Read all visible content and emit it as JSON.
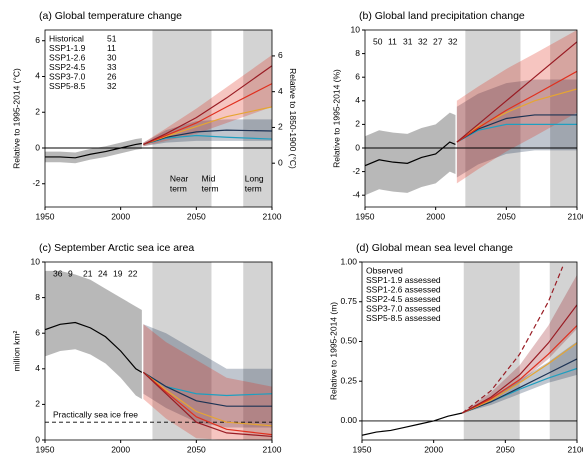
{
  "chart_data": [
    {
      "type": "line",
      "title": "(a) Global temperature change",
      "ylabel": "Relative to 1995-2014 (°C)",
      "y2label": "Relative to 1850-1900 (°C)",
      "xlim": [
        1950,
        2100
      ],
      "xticks": [
        1950,
        2000,
        2050,
        2100
      ],
      "ylim": [
        -3.3,
        6.6
      ],
      "yticks": [
        -2,
        0,
        2,
        4,
        6
      ],
      "y2lim": [
        -2.45,
        7.45
      ],
      "y2ticks": [
        0,
        2,
        4,
        6
      ],
      "shading": [
        [
          2021,
          2060
        ],
        [
          2081,
          2100
        ]
      ],
      "legend": "upper left",
      "annotations": [
        [
          "Near",
          "term"
        ],
        [
          "Mid",
          "term"
        ],
        [
          "Long",
          "term"
        ]
      ],
      "series": [
        {
          "name": "Historical",
          "count": 51,
          "color": "#000000",
          "x": [
            1950,
            1960,
            1970,
            1980,
            1990,
            2000,
            2010,
            2014
          ],
          "values": [
            -0.5,
            -0.5,
            -0.55,
            -0.35,
            -0.2,
            0,
            0.2,
            0.25
          ],
          "lower": [
            -0.8,
            -0.8,
            -0.85,
            -0.65,
            -0.5,
            -0.3,
            -0.1,
            -0.05
          ],
          "upper": [
            -0.2,
            -0.2,
            -0.25,
            -0.05,
            0.1,
            0.3,
            0.5,
            0.55
          ]
        },
        {
          "name": "SSP1-1.9",
          "count": 11,
          "color": "#1e9fc0",
          "x": [
            2015,
            2030,
            2050,
            2070,
            2100
          ],
          "values": [
            0.2,
            0.55,
            0.7,
            0.6,
            0.5
          ]
        },
        {
          "name": "SSP1-2.6",
          "count": 30,
          "color": "#1d3354",
          "x": [
            2015,
            2030,
            2050,
            2070,
            2100
          ],
          "values": [
            0.2,
            0.6,
            0.9,
            1.0,
            0.95
          ],
          "lower": [
            0.1,
            0.3,
            0.4,
            0.4,
            0.4
          ],
          "upper": [
            0.3,
            1.0,
            1.5,
            1.6,
            1.6
          ]
        },
        {
          "name": "SSP2-4.5",
          "count": 33,
          "color": "#e6a532",
          "x": [
            2015,
            2030,
            2050,
            2070,
            2100
          ],
          "values": [
            0.2,
            0.65,
            1.2,
            1.75,
            2.3
          ]
        },
        {
          "name": "SSP3-7.0",
          "count": 26,
          "color": "#e0301e",
          "x": [
            2015,
            2030,
            2050,
            2070,
            2100
          ],
          "values": [
            0.2,
            0.7,
            1.4,
            2.3,
            3.6
          ],
          "lower": [
            0.1,
            0.4,
            0.8,
            1.4,
            2.3
          ],
          "upper": [
            0.3,
            1.1,
            2.2,
            3.4,
            5.2
          ]
        },
        {
          "name": "SSP5-8.5",
          "count": 32,
          "color": "#991c24",
          "x": [
            2015,
            2030,
            2050,
            2070,
            2100
          ],
          "values": [
            0.2,
            0.8,
            1.7,
            2.8,
            4.6
          ]
        }
      ]
    },
    {
      "type": "line",
      "title": "(b) Global land precipitation change",
      "ylabel": "Relative to 1995-2014 (%)",
      "xlim": [
        1950,
        2100
      ],
      "xticks": [
        1950,
        2000,
        2050,
        2100
      ],
      "ylim": [
        -5,
        10
      ],
      "yticks": [
        -4,
        -2,
        0,
        2,
        4,
        6,
        8,
        10
      ],
      "shading": [
        [
          2021,
          2060
        ],
        [
          2081,
          2100
        ]
      ],
      "legend": "upper left",
      "series": [
        {
          "count": 50,
          "color": "#000000",
          "x": [
            1950,
            1960,
            1970,
            1980,
            1990,
            2000,
            2010,
            2014
          ],
          "values": [
            -1.5,
            -1,
            -1.2,
            -1.3,
            -0.8,
            -0.5,
            0.5,
            0.3
          ],
          "lower": [
            -4,
            -3.5,
            -3.7,
            -3.8,
            -3.3,
            -3,
            -2,
            -2.2
          ],
          "upper": [
            1,
            1.5,
            1.3,
            1.2,
            1.7,
            2,
            3,
            2.8
          ]
        },
        {
          "count": 11,
          "color": "#1e9fc0",
          "x": [
            2015,
            2030,
            2050,
            2070,
            2100
          ],
          "values": [
            0.5,
            1.5,
            2.0,
            2.0,
            2.0
          ]
        },
        {
          "count": 31,
          "color": "#1d3354",
          "x": [
            2015,
            2030,
            2050,
            2070,
            2100
          ],
          "values": [
            0.5,
            1.6,
            2.5,
            2.8,
            2.8
          ],
          "lower": [
            -2.5,
            -1.4,
            -0.5,
            -0.2,
            -0.2
          ],
          "upper": [
            3.5,
            4.6,
            5.5,
            5.8,
            5.8
          ]
        },
        {
          "count": 32,
          "color": "#e6a532",
          "x": [
            2015,
            2030,
            2050,
            2070,
            2100
          ],
          "values": [
            0.5,
            1.8,
            3.0,
            4.0,
            5.0
          ]
        },
        {
          "count": 27,
          "color": "#e0301e",
          "x": [
            2015,
            2030,
            2050,
            2070,
            2100
          ],
          "values": [
            0.5,
            1.7,
            3.2,
            4.5,
            6.5
          ],
          "lower": [
            -3,
            -1.8,
            -0.3,
            1,
            3
          ],
          "upper": [
            4,
            5.2,
            6.7,
            8,
            10
          ]
        },
        {
          "count": 32,
          "color": "#991c24",
          "x": [
            2015,
            2030,
            2050,
            2070,
            2100
          ],
          "values": [
            0.5,
            2.0,
            4.0,
            6.0,
            9.0
          ]
        }
      ]
    },
    {
      "type": "line",
      "title": "(c) September Arctic sea ice area",
      "ylabel": "million km²",
      "xlim": [
        1950,
        2100
      ],
      "xticks": [
        1950,
        2000,
        2050,
        2100
      ],
      "ylim": [
        0,
        10
      ],
      "yticks": [
        0,
        2,
        4,
        6,
        8,
        10
      ],
      "shading": [
        [
          2021,
          2060
        ],
        [
          2081,
          2100
        ]
      ],
      "legend": "upper left",
      "threshold": 1,
      "threshold_label": "Practically sea ice free",
      "series": [
        {
          "count": 36,
          "color": "#000000",
          "x": [
            1950,
            1960,
            1970,
            1980,
            1990,
            2000,
            2010,
            2014
          ],
          "values": [
            6.2,
            6.5,
            6.6,
            6.3,
            5.8,
            5.0,
            4.0,
            3.8
          ],
          "lower": [
            4.7,
            5.0,
            5.1,
            4.8,
            4.3,
            3.5,
            2.5,
            2.3
          ],
          "upper": [
            9.5,
            9.5,
            9.3,
            9,
            8.5,
            8,
            7.5,
            7.3
          ]
        },
        {
          "count": 9,
          "color": "#1e9fc0",
          "x": [
            2015,
            2030,
            2050,
            2070,
            2100
          ],
          "values": [
            3.8,
            3.0,
            2.6,
            2.5,
            2.6
          ]
        },
        {
          "count": 21,
          "color": "#1d3354",
          "x": [
            2015,
            2030,
            2050,
            2070,
            2100
          ],
          "values": [
            3.8,
            3.0,
            2.2,
            1.9,
            1.9
          ],
          "lower": [
            2.6,
            1.8,
            1.0,
            0.7,
            0.7
          ],
          "upper": [
            6.5,
            6.0,
            5.0,
            4.0,
            4.0
          ]
        },
        {
          "count": 24,
          "color": "#e6a532",
          "x": [
            2015,
            2030,
            2050,
            2070,
            2100
          ],
          "values": [
            3.8,
            2.8,
            1.6,
            1.0,
            0.8
          ]
        },
        {
          "count": 19,
          "color": "#e0301e",
          "x": [
            2015,
            2030,
            2050,
            2070,
            2100
          ],
          "values": [
            3.8,
            2.7,
            1.3,
            0.6,
            0.3
          ],
          "lower": [
            2.3,
            1.2,
            0.1,
            0,
            0
          ],
          "upper": [
            6.5,
            5.5,
            4.5,
            3.5,
            3.0
          ]
        },
        {
          "count": 22,
          "color": "#991c24",
          "x": [
            2015,
            2030,
            2050,
            2070,
            2100
          ],
          "values": [
            3.8,
            2.6,
            1.0,
            0.4,
            0.2
          ]
        }
      ]
    },
    {
      "type": "line",
      "title": "(d) Global mean sea level change",
      "ylabel": "Relative to 1995-2014 (m)",
      "xlim": [
        1950,
        2100
      ],
      "xticks": [
        1950,
        2000,
        2050,
        2100
      ],
      "ylim": [
        -0.12,
        1.0
      ],
      "yticks": [
        {
          "value": 0,
          "label": "0.00"
        },
        {
          "value": 0.25,
          "label": "0.25"
        },
        {
          "value": 0.5,
          "label": "0.50"
        },
        {
          "value": 0.75,
          "label": "0.75"
        },
        {
          "value": 1.0,
          "label": "1.00"
        }
      ],
      "shading": [
        [
          2021,
          2060
        ],
        [
          2081,
          2100
        ]
      ],
      "legend": "upper left",
      "series": [
        {
          "name": "Observed",
          "color": "#000000",
          "x": [
            1950,
            1960,
            1970,
            1980,
            1990,
            2000,
            2010,
            2020
          ],
          "values": [
            -0.09,
            -0.07,
            -0.06,
            -0.04,
            -0.02,
            0.0,
            0.03,
            0.05
          ]
        },
        {
          "name": "SSP1-1.9 assessed",
          "color": "#1e9fc0",
          "x": [
            2020,
            2040,
            2060,
            2080,
            2100
          ],
          "values": [
            0.05,
            0.12,
            0.2,
            0.27,
            0.33
          ]
        },
        {
          "name": "SSP1-2.6 assessed",
          "color": "#1d3354",
          "x": [
            2020,
            2040,
            2060,
            2080,
            2100
          ],
          "values": [
            0.05,
            0.12,
            0.21,
            0.3,
            0.39
          ],
          "lower": [
            0.05,
            0.1,
            0.17,
            0.24,
            0.29
          ],
          "upper": [
            0.05,
            0.15,
            0.26,
            0.37,
            0.5
          ]
        },
        {
          "name": "SSP2-4.5 assessed",
          "color": "#e6a532",
          "x": [
            2020,
            2040,
            2060,
            2080,
            2100
          ],
          "values": [
            0.05,
            0.13,
            0.24,
            0.36,
            0.49
          ]
        },
        {
          "name": "SSP3-7.0 assessed",
          "color": "#e0301e",
          "x": [
            2020,
            2040,
            2060,
            2080,
            2100
          ],
          "values": [
            0.05,
            0.14,
            0.26,
            0.42,
            0.6
          ]
        },
        {
          "name": "SSP5-8.5 assessed",
          "color": "#991c24",
          "x": [
            2020,
            2040,
            2060,
            2080,
            2100
          ],
          "values": [
            0.05,
            0.15,
            0.29,
            0.49,
            0.73
          ],
          "lower": [
            0.05,
            0.12,
            0.24,
            0.39,
            0.58
          ],
          "upper": [
            0.05,
            0.18,
            0.35,
            0.6,
            0.92
          ]
        },
        {
          "color": "#991c24",
          "dashed": true,
          "x": [
            2020,
            2040,
            2060,
            2080,
            2090
          ],
          "values": [
            0.05,
            0.19,
            0.42,
            0.75,
            0.97
          ]
        }
      ]
    }
  ]
}
